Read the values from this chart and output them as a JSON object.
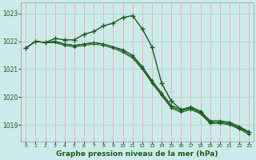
{
  "title": "Graphe pression niveau de la mer (hPa)",
  "bg_color": "#cceaea",
  "line_color": "#1a5c1a",
  "grid_color_h": "#aad4d4",
  "grid_color_v": "#f0a0a0",
  "xlim": [
    -0.5,
    23.5
  ],
  "ylim": [
    1018.4,
    1023.4
  ],
  "yticks": [
    1019,
    1020,
    1021,
    1022,
    1023
  ],
  "xticks": [
    0,
    1,
    2,
    3,
    4,
    5,
    6,
    7,
    8,
    9,
    10,
    11,
    12,
    13,
    14,
    15,
    16,
    17,
    18,
    19,
    20,
    21,
    22,
    23
  ],
  "series": [
    [
      1021.75,
      1022.0,
      1021.95,
      1022.1,
      1022.05,
      1022.05,
      1022.25,
      1022.35,
      1022.55,
      1022.65,
      1022.85,
      1022.92,
      1022.45,
      1021.8,
      1020.5,
      1019.85,
      1019.55,
      1019.6,
      1019.45,
      1019.1,
      1019.1,
      1019.05,
      1018.9,
      1018.75
    ],
    [
      1021.75,
      1022.0,
      1021.95,
      1022.0,
      1021.9,
      1021.85,
      1021.9,
      1021.95,
      1021.9,
      1021.8,
      1021.7,
      1021.5,
      1021.1,
      1020.6,
      1020.15,
      1019.7,
      1019.55,
      1019.65,
      1019.5,
      1019.15,
      1019.15,
      1019.1,
      1018.95,
      1018.75
    ],
    [
      1021.75,
      1022.0,
      1021.95,
      1021.95,
      1021.85,
      1021.8,
      1021.85,
      1021.9,
      1021.85,
      1021.75,
      1021.6,
      1021.4,
      1021.0,
      1020.5,
      1020.05,
      1019.6,
      1019.45,
      1019.55,
      1019.4,
      1019.05,
      1019.05,
      1019.0,
      1018.85,
      1018.65
    ],
    [
      1021.75,
      1022.0,
      1021.95,
      1022.0,
      1021.9,
      1021.85,
      1021.9,
      1021.95,
      1021.9,
      1021.8,
      1021.65,
      1021.45,
      1021.05,
      1020.55,
      1020.1,
      1019.65,
      1019.5,
      1019.6,
      1019.45,
      1019.1,
      1019.1,
      1019.05,
      1018.9,
      1018.7
    ]
  ]
}
